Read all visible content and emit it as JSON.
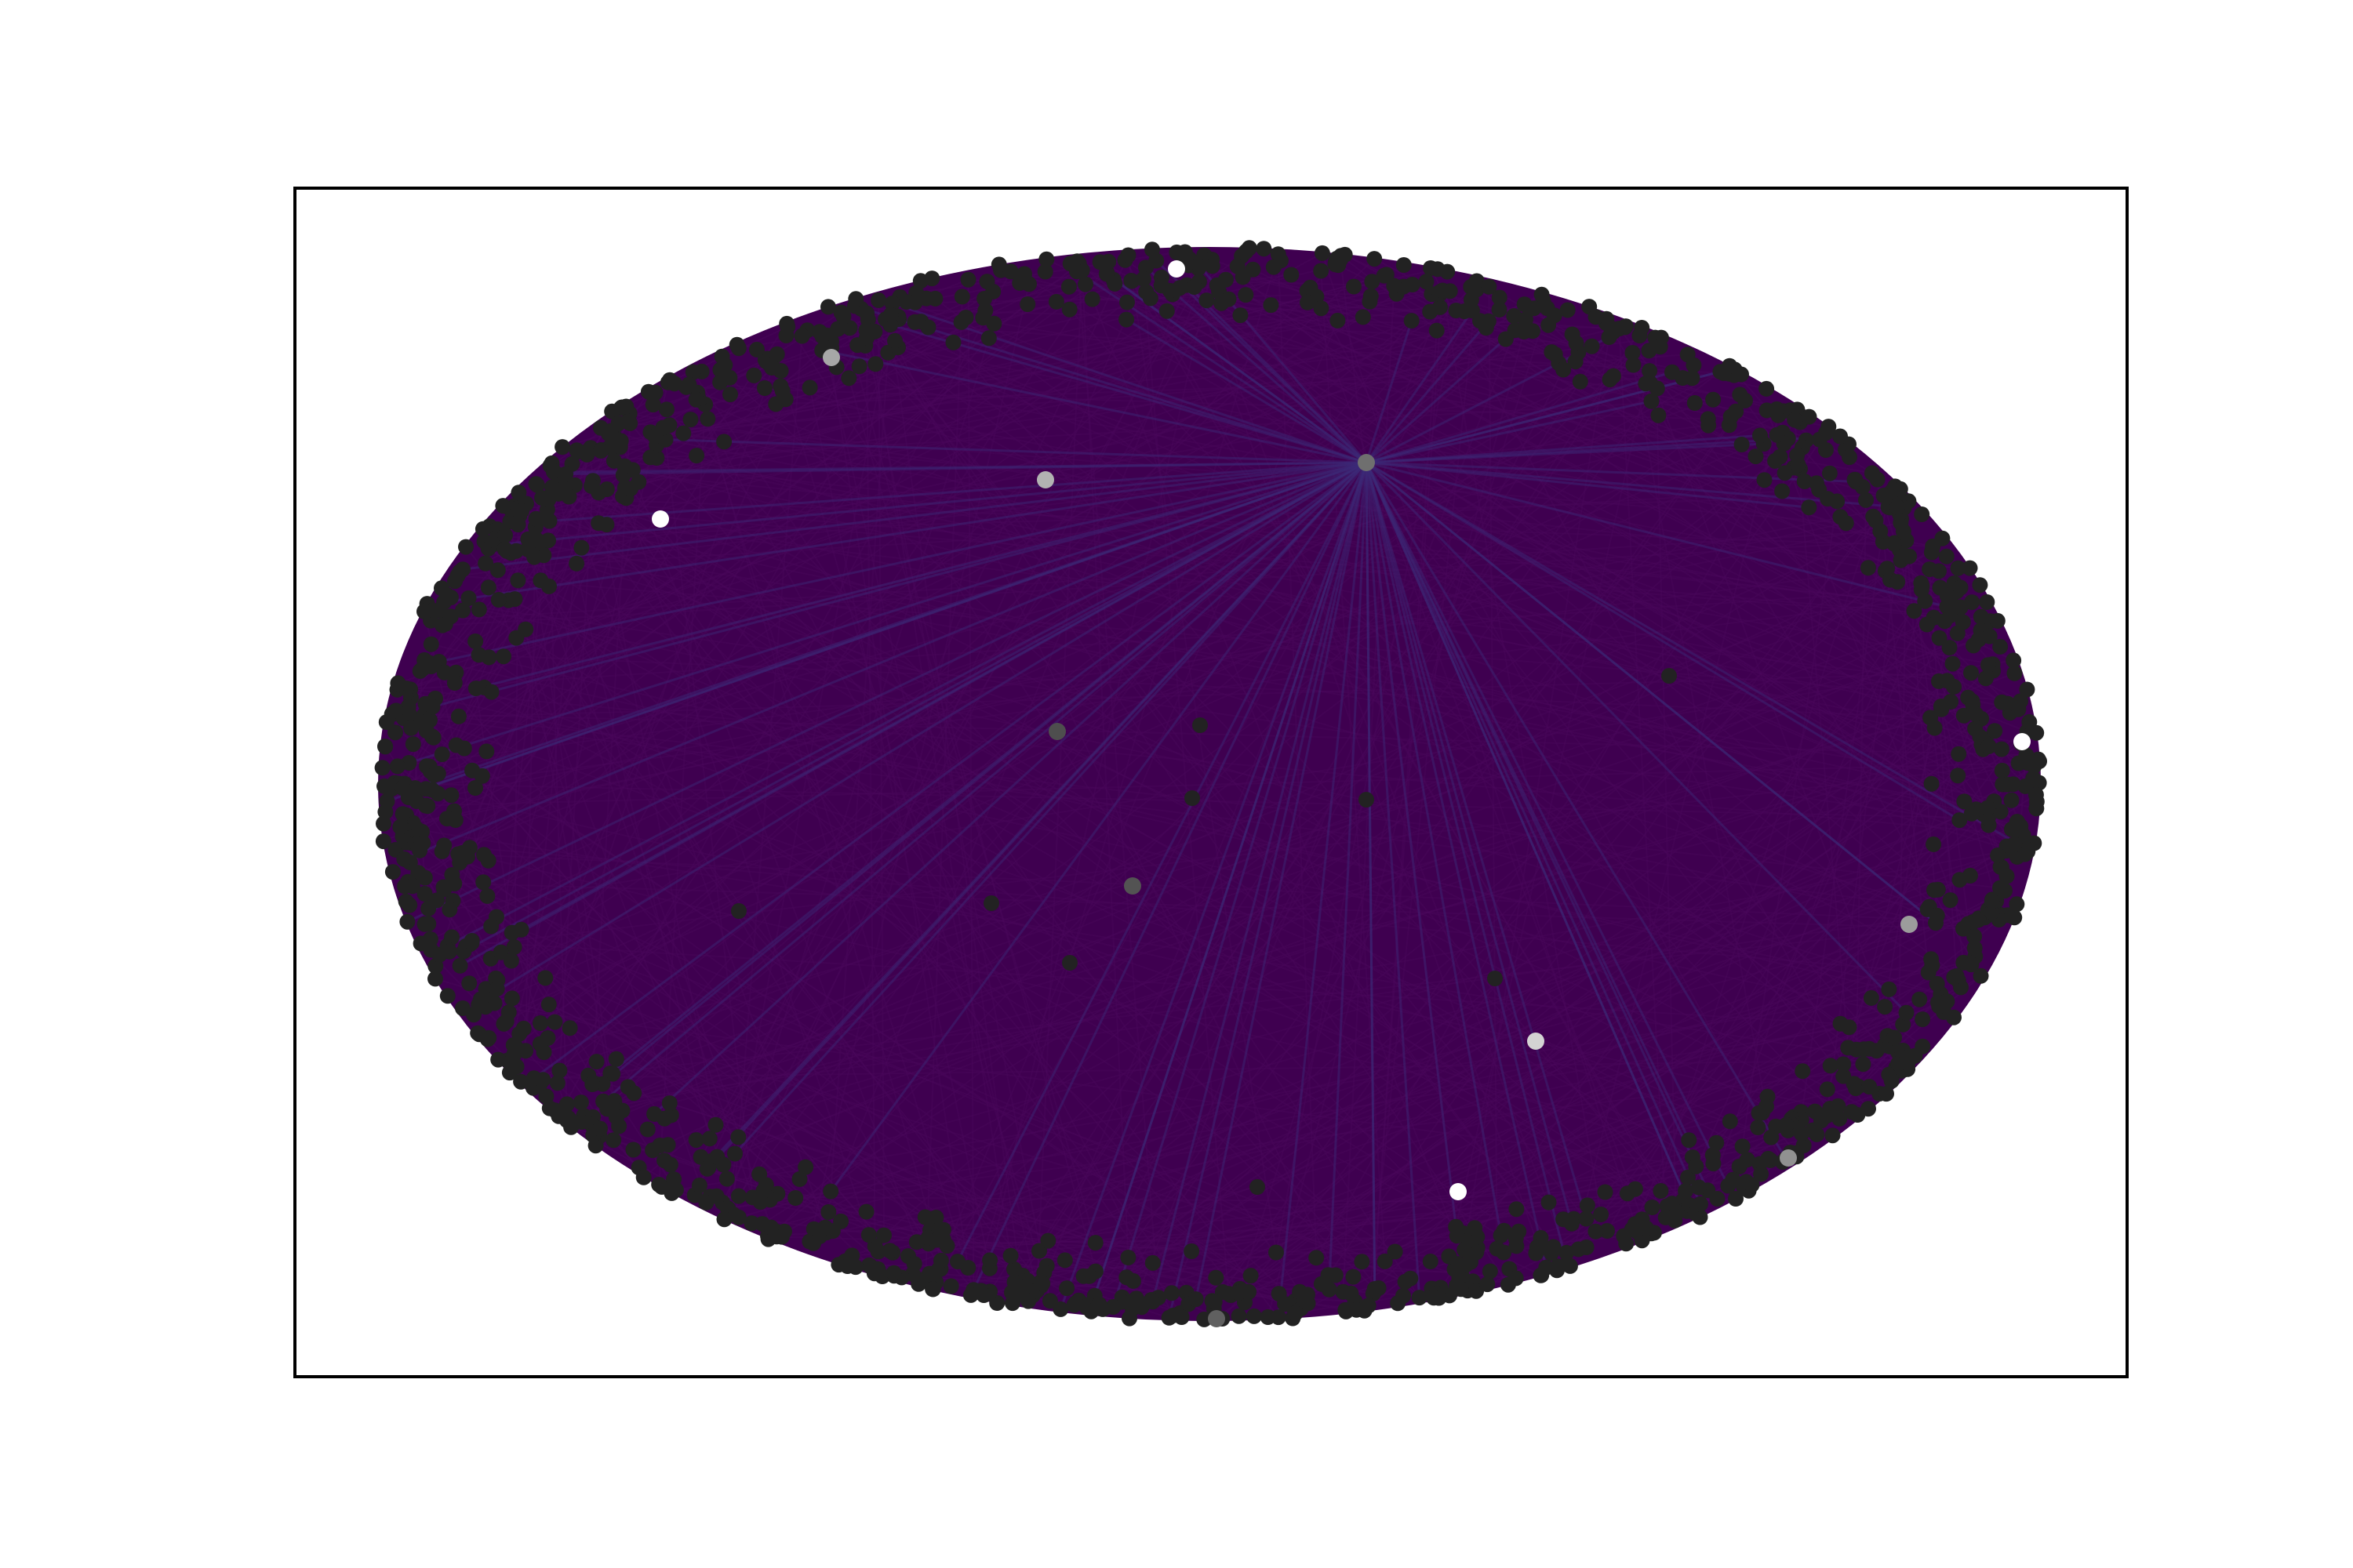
{
  "figure": {
    "title": "",
    "background_color": "#ffffff",
    "frame_color": "#000000"
  },
  "graph": {
    "layout": "spring",
    "node_count_approx": 1400,
    "edge_color": "#3f0050",
    "edge_highlight_color": "#3b2a78",
    "node_default_color": "#222222",
    "hub_node": {
      "label": "",
      "shade": 0.35
    },
    "highlighted_nodes": [
      {
        "id": "n-white-top",
        "shade": 1.0
      },
      {
        "id": "n-grey-upper-left",
        "shade": 0.6
      },
      {
        "id": "n-white-left",
        "shade": 1.0
      },
      {
        "id": "n-grey-upper-mid",
        "shade": 0.65
      },
      {
        "id": "n-hub",
        "shade": 0.35
      },
      {
        "id": "n-white-right",
        "shade": 1.0
      },
      {
        "id": "n-dark-center-1",
        "shade": 0.2
      },
      {
        "id": "n-dark-center-2",
        "shade": 0.22
      },
      {
        "id": "n-grey-right-lower",
        "shade": 0.55
      },
      {
        "id": "n-light-lower-mid",
        "shade": 0.8
      },
      {
        "id": "n-grey-lower-right",
        "shade": 0.5
      },
      {
        "id": "n-white-lower",
        "shade": 1.0
      },
      {
        "id": "n-dark-bottom",
        "shade": 0.28
      }
    ]
  }
}
